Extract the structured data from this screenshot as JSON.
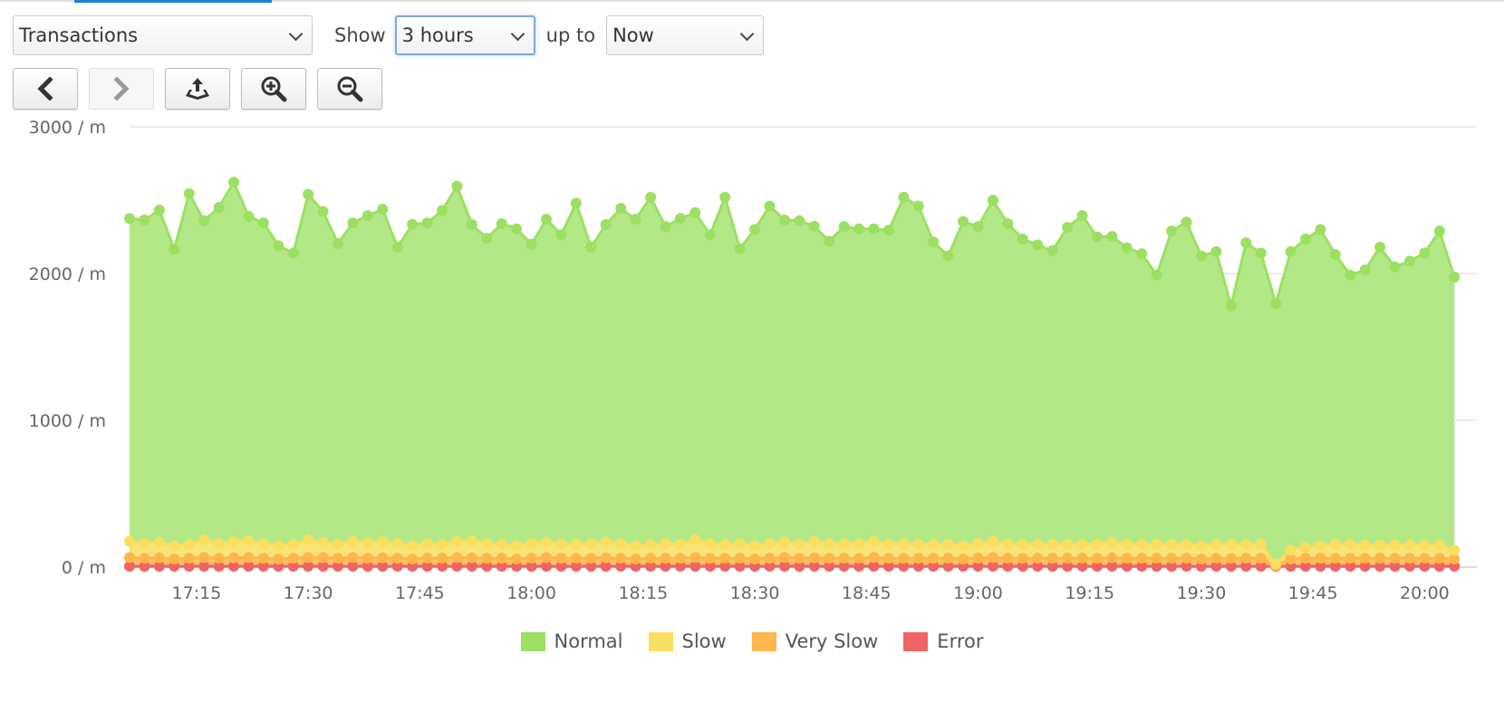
{
  "toolbar": {
    "metric_value": "Transactions",
    "show_label": "Show",
    "range_value": "3 hours",
    "upto_label": "up to",
    "upto_value": "Now"
  },
  "buttons": [
    {
      "icon": "chevron-left-icon",
      "enabled": true
    },
    {
      "icon": "chevron-right-icon",
      "enabled": false
    },
    {
      "icon": "export-icon",
      "enabled": true
    },
    {
      "icon": "zoom-in-icon",
      "enabled": true
    },
    {
      "icon": "zoom-out-icon",
      "enabled": true
    }
  ],
  "colors": {
    "normal": "#9ddf62",
    "normal_fill": "#b3e887",
    "slow": "#f9df5f",
    "very_slow": "#ffb64c",
    "error": "#ef6464",
    "grid": "#e6e6e6",
    "accent": "#1f7fdb"
  },
  "chart_data": {
    "type": "area",
    "stacked": true,
    "ylim": [
      0,
      3000
    ],
    "y_ticks": [
      0,
      1000,
      2000,
      3000
    ],
    "y_tick_labels": [
      "0 / m",
      "1000 / m",
      "2000 / m",
      "3000 / m"
    ],
    "x_start_label": "17:06",
    "x_step_minutes": 2,
    "x_tick_labels": [
      "17:15",
      "17:30",
      "17:45",
      "18:00",
      "18:15",
      "18:30",
      "18:45",
      "19:00",
      "19:15",
      "19:30",
      "19:45",
      "20:00"
    ],
    "x_tick_minutes_from_start": [
      9,
      24,
      39,
      54,
      69,
      84,
      99,
      114,
      129,
      144,
      159,
      174
    ],
    "series": [
      {
        "name": "Error",
        "color": "#ef6464",
        "values": [
          5,
          5,
          5,
          5,
          5,
          5,
          5,
          5,
          5,
          5,
          5,
          5,
          5,
          5,
          5,
          5,
          5,
          5,
          5,
          5,
          5,
          5,
          5,
          5,
          5,
          5,
          5,
          5,
          5,
          5,
          5,
          5,
          5,
          5,
          5,
          5,
          5,
          5,
          5,
          5,
          5,
          5,
          5,
          5,
          5,
          5,
          5,
          5,
          5,
          5,
          5,
          5,
          5,
          5,
          5,
          5,
          5,
          5,
          5,
          5,
          5,
          5,
          5,
          5,
          5,
          5,
          5,
          5,
          5,
          5,
          5,
          5,
          5,
          5,
          5,
          5,
          5,
          5,
          5,
          5,
          5,
          5,
          5,
          5,
          5,
          5,
          5,
          5,
          5,
          5
        ]
      },
      {
        "name": "Very Slow",
        "color": "#ffb64c",
        "values": [
          60,
          55,
          58,
          50,
          55,
          60,
          55,
          58,
          60,
          55,
          50,
          55,
          60,
          58,
          55,
          60,
          55,
          58,
          55,
          50,
          55,
          55,
          60,
          58,
          55,
          55,
          50,
          55,
          60,
          55,
          55,
          55,
          58,
          55,
          50,
          55,
          55,
          55,
          60,
          55,
          55,
          55,
          50,
          55,
          60,
          55,
          58,
          55,
          55,
          55,
          60,
          55,
          55,
          55,
          55,
          55,
          50,
          55,
          60,
          55,
          55,
          55,
          55,
          55,
          55,
          55,
          58,
          55,
          55,
          55,
          55,
          55,
          50,
          55,
          55,
          55,
          55,
          5,
          50,
          55,
          55,
          55,
          55,
          55,
          55,
          55,
          55,
          55,
          55,
          50
        ]
      },
      {
        "name": "Slow",
        "color": "#f9df5f",
        "values": [
          110,
          100,
          105,
          90,
          95,
          120,
          100,
          110,
          115,
          100,
          90,
          95,
          120,
          105,
          95,
          110,
          105,
          110,
          100,
          90,
          100,
          95,
          110,
          115,
          100,
          95,
          90,
          100,
          105,
          95,
          95,
          100,
          105,
          100,
          90,
          95,
          100,
          95,
          120,
          100,
          95,
          100,
          90,
          100,
          105,
          95,
          110,
          100,
          100,
          100,
          110,
          95,
          100,
          95,
          95,
          95,
          90,
          100,
          110,
          95,
          95,
          95,
          95,
          95,
          95,
          95,
          105,
          95,
          95,
          95,
          95,
          95,
          90,
          95,
          95,
          95,
          95,
          10,
          60,
          75,
          85,
          95,
          95,
          90,
          90,
          90,
          90,
          90,
          90,
          60
        ]
      },
      {
        "name": "Normal",
        "color": "#9ddf62",
        "values": [
          2200,
          2205,
          2265,
          2020,
          2390,
          2175,
          2290,
          2450,
          2210,
          2185,
          2045,
          1985,
          2355,
          2255,
          2050,
          2170,
          2230,
          2265,
          2020,
          2190,
          2185,
          2275,
          2420,
          2155,
          2080,
          2185,
          2160,
          2040,
          2200,
          2110,
          2325,
          2020,
          2165,
          2285,
          2225,
          2365,
          2160,
          2220,
          2230,
          2105,
          2365,
          2010,
          2155,
          2300,
          2195,
          2205,
          2150,
          2060,
          2160,
          2145,
          2130,
          2140,
          2360,
          2305,
          2060,
          1965,
          2210,
          2160,
          2325,
          2185,
          2080,
          2040,
          2000,
          2160,
          2240,
          2095,
          2085,
          2020,
          1980,
          1835,
          2135,
          2195,
          1975,
          1995,
          1625,
          2055,
          1985,
          1775,
          2035,
          2100,
          2155,
          1975,
          1835,
          1875,
          2030,
          1895,
          1935,
          1990,
          2140,
          1860
        ]
      }
    ],
    "legend_order": [
      "Normal",
      "Slow",
      "Very Slow",
      "Error"
    ],
    "legend": [
      {
        "label": "Normal",
        "color": "#9ddf62"
      },
      {
        "label": "Slow",
        "color": "#f9df5f"
      },
      {
        "label": "Very Slow",
        "color": "#ffb64c"
      },
      {
        "label": "Error",
        "color": "#ef6464"
      }
    ],
    "legend_position": "bottom-center",
    "grid": true
  }
}
